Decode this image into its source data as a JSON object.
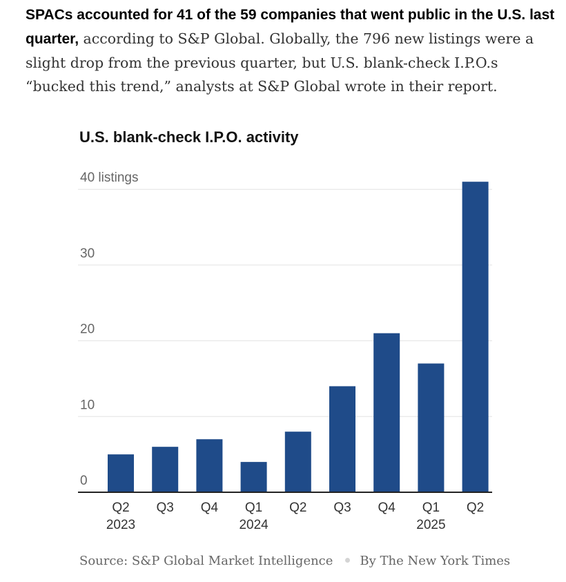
{
  "intro": {
    "lead": "SPACs accounted for 41 of the 59 companies that went public in the U.S. last quarter,",
    "body": " according to S&P Global. Globally, the 796 new listings were a slight drop from the previous quarter, but U.S. blank-check I.P.O.s “bucked this trend,” analysts at S&P Global wrote in their report."
  },
  "colors": {
    "bar": "#1f4b89",
    "gridline": "#e2e2e2",
    "axis": "#222222"
  },
  "chart_data": {
    "type": "bar",
    "title": "U.S. blank-check I.P.O. activity",
    "categories": [
      "Q2",
      "Q3",
      "Q4",
      "Q1",
      "Q2",
      "Q3",
      "Q4",
      "Q1",
      "Q2"
    ],
    "year_labels": [
      "2023",
      "",
      "",
      "2024",
      "",
      "",
      "",
      "2025",
      ""
    ],
    "values": [
      5,
      6,
      7,
      4,
      8,
      14,
      21,
      17,
      41
    ],
    "yticks": [
      0,
      10,
      20,
      30,
      40
    ],
    "ytick_labels": [
      "0",
      "10",
      "20",
      "30",
      "40 listings"
    ],
    "ylim": [
      0,
      41
    ],
    "grid": true
  },
  "source": {
    "text": "Source: S&P Global Market Intelligence",
    "credit": "By The New York Times"
  }
}
